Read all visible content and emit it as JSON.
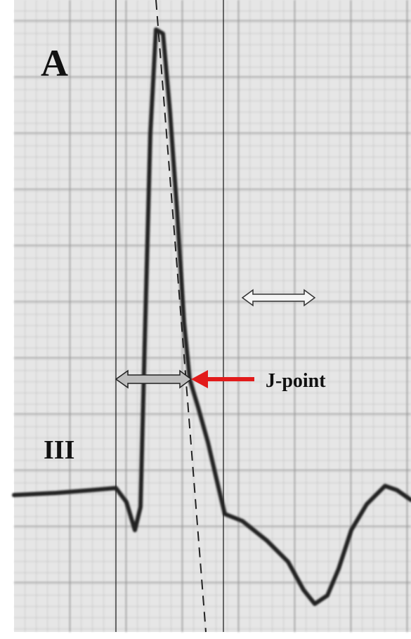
{
  "panel_label": "A",
  "lead_label": "III",
  "annotation": "J-point"
}
